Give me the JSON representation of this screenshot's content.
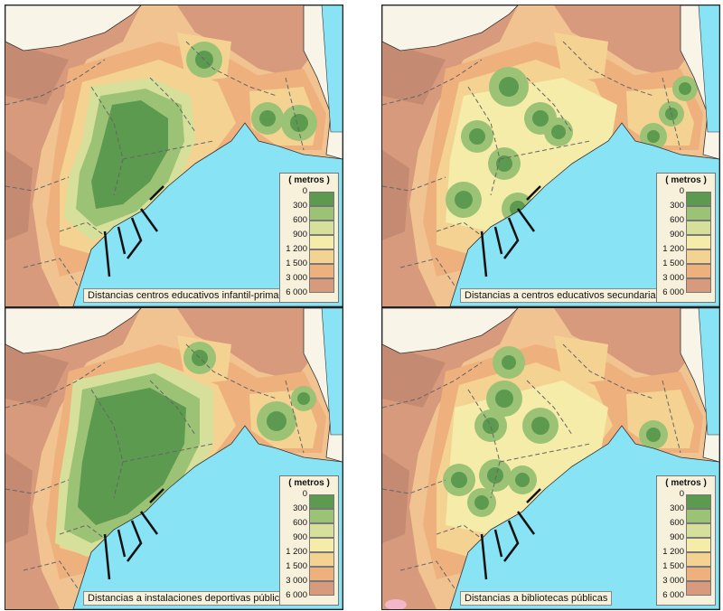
{
  "legend": {
    "title": "( metros )",
    "breaks": [
      "0",
      "300",
      "600",
      "900",
      "1 200",
      "1 500",
      "3 000",
      "6 000"
    ],
    "colors": [
      "#5c9a4f",
      "#9cc275",
      "#d6e09a",
      "#f4eca8",
      "#f4d392",
      "#eeb17d",
      "#d89a7c"
    ]
  },
  "colors": {
    "sea": "#88e3f4",
    "land_outside": "#f8f5e8",
    "pink_spot": "#f3b7c9"
  },
  "panels": [
    {
      "caption": "Distancias centros educativos infantil-primaria"
    },
    {
      "caption": "Distancias a centros educativos secundaria-FP"
    },
    {
      "caption": "Distancias a instalaciones deportivas públicas"
    },
    {
      "caption": "Distancias a bibliotecas públicas"
    }
  ]
}
